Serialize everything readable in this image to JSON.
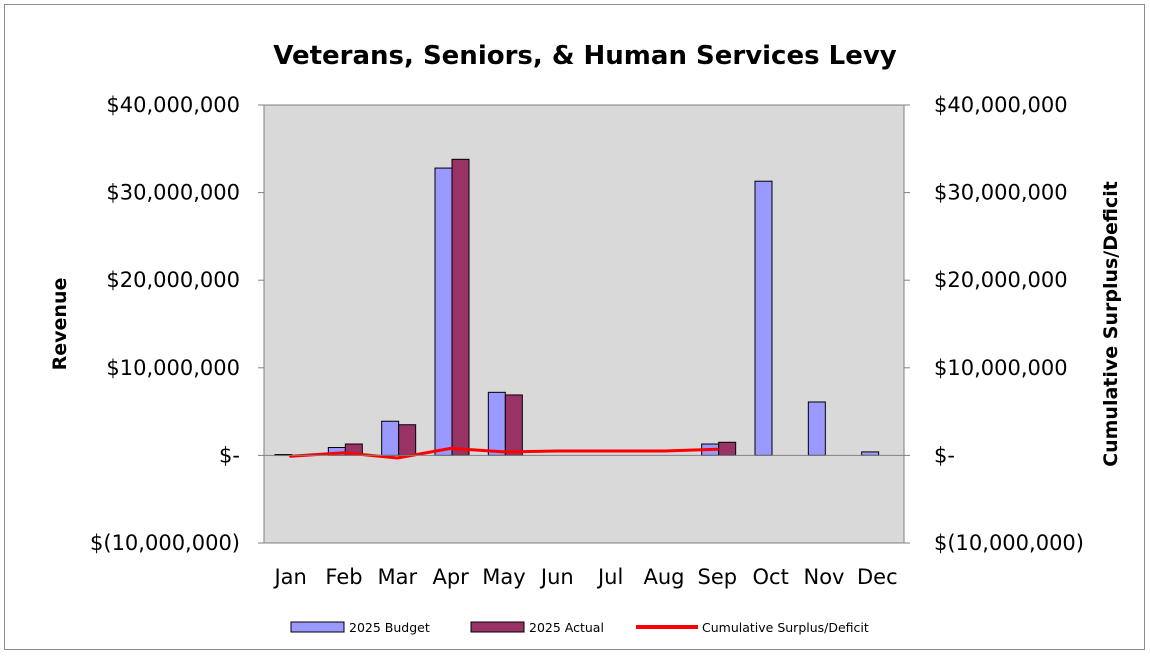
{
  "chart_data": {
    "type": "bar",
    "title": "Veterans, Seniors, & Human Services Levy",
    "ylabel": "Revenue",
    "y2label": "Cumulative Surplus/Deficit",
    "categories": [
      "Jan",
      "Feb",
      "Mar",
      "Apr",
      "May",
      "Jun",
      "Jul",
      "Aug",
      "Sep",
      "Oct",
      "Nov",
      "Dec"
    ],
    "ylim": [
      -10000000,
      40000000
    ],
    "y2lim": [
      -10000000,
      40000000
    ],
    "yticks": [
      40000000,
      30000000,
      20000000,
      10000000,
      0,
      -10000000
    ],
    "ytick_labels": [
      "$40,000,000",
      "$30,000,000",
      "$20,000,000",
      "$10,000,000",
      "$-",
      "$(10,000,000)"
    ],
    "y2tick_labels": [
      "$40,000,000",
      "$30,000,000",
      "$20,000,000",
      "$10,000,000",
      "$-",
      "$(10,000,000)"
    ],
    "series": [
      {
        "name": "2025 Budget",
        "kind": "bar",
        "color": "#9999ff",
        "values": [
          100000,
          900000,
          3900000,
          32800000,
          7200000,
          0,
          0,
          0,
          1300000,
          31300000,
          6100000,
          400000
        ]
      },
      {
        "name": "2025 Actual",
        "kind": "bar",
        "color": "#993366",
        "values": [
          0,
          1300000,
          3500000,
          33800000,
          6900000,
          0,
          0,
          0,
          1500000,
          null,
          null,
          null
        ]
      },
      {
        "name": "Cumulative Surplus/Deficit",
        "kind": "line",
        "axis": "right",
        "color": "#ff0000",
        "values": [
          -100000,
          300000,
          -300000,
          800000,
          400000,
          500000,
          500000,
          500000,
          700000,
          null,
          null,
          null
        ]
      }
    ],
    "grid": false,
    "plot_background": "#d9d9d9",
    "legend_position": "bottom"
  }
}
